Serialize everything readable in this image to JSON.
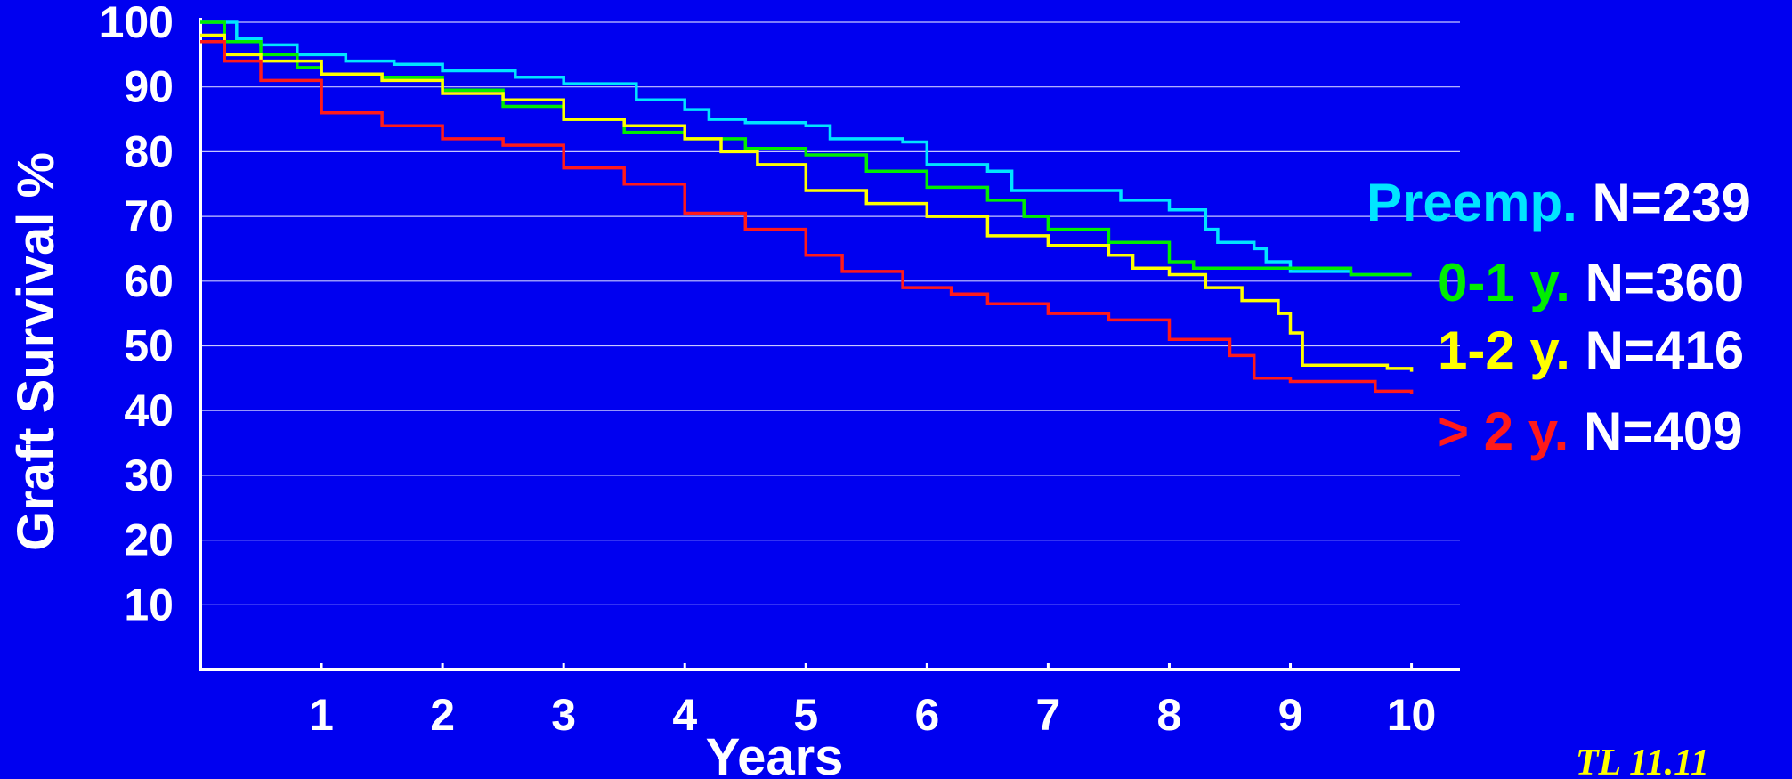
{
  "colors": {
    "background": "#0000f0",
    "axis": "#ffffff",
    "grid": "#c8c8ff"
  },
  "chart_data": {
    "type": "line",
    "xlabel": "Years",
    "ylabel": "Graft Survival %",
    "xlim": [
      0,
      10.4
    ],
    "ylim": [
      0,
      100
    ],
    "x_ticks": [
      1,
      2,
      3,
      4,
      5,
      6,
      7,
      8,
      9,
      10
    ],
    "y_ticks": [
      10,
      20,
      30,
      40,
      50,
      60,
      70,
      80,
      90,
      100
    ],
    "grid": true,
    "step": true,
    "legend_placement": "right",
    "series": [
      {
        "name": "Preemp.",
        "n_label": "N=239",
        "color": "#00e5ff",
        "points": [
          [
            0,
            100
          ],
          [
            0.3,
            97.5
          ],
          [
            0.5,
            96.5
          ],
          [
            0.8,
            95
          ],
          [
            1.2,
            94
          ],
          [
            1.6,
            93.5
          ],
          [
            2.0,
            92.5
          ],
          [
            2.6,
            91.5
          ],
          [
            3.0,
            90.5
          ],
          [
            3.6,
            88
          ],
          [
            4.0,
            86.5
          ],
          [
            4.2,
            85
          ],
          [
            4.5,
            84.5
          ],
          [
            5.0,
            84
          ],
          [
            5.2,
            82
          ],
          [
            5.8,
            81.5
          ],
          [
            6.0,
            78
          ],
          [
            6.5,
            77
          ],
          [
            6.7,
            74
          ],
          [
            7.0,
            74
          ],
          [
            7.6,
            72.5
          ],
          [
            8.0,
            71
          ],
          [
            8.3,
            68
          ],
          [
            8.4,
            66
          ],
          [
            8.7,
            65
          ],
          [
            8.8,
            63
          ],
          [
            9.0,
            61.5
          ],
          [
            9.5,
            61
          ],
          [
            10.0,
            61
          ]
        ]
      },
      {
        "name": "0-1 y.",
        "n_label": "N=360",
        "color": "#00ee00",
        "points": [
          [
            0,
            100
          ],
          [
            0.2,
            97
          ],
          [
            0.5,
            95
          ],
          [
            0.8,
            93
          ],
          [
            1.0,
            92
          ],
          [
            1.5,
            91.5
          ],
          [
            2.0,
            89.5
          ],
          [
            2.5,
            87
          ],
          [
            3.0,
            85
          ],
          [
            3.5,
            83
          ],
          [
            4.0,
            82
          ],
          [
            4.5,
            80.5
          ],
          [
            5.0,
            79.5
          ],
          [
            5.5,
            77
          ],
          [
            6.0,
            74.5
          ],
          [
            6.5,
            72.5
          ],
          [
            6.8,
            70
          ],
          [
            7.0,
            68
          ],
          [
            7.5,
            66
          ],
          [
            8.0,
            63
          ],
          [
            8.2,
            62
          ],
          [
            9.0,
            62
          ],
          [
            9.5,
            61
          ],
          [
            10.0,
            61
          ]
        ]
      },
      {
        "name": "1-2 y.",
        "n_label": "N=416",
        "color": "#ffff00",
        "points": [
          [
            0,
            98
          ],
          [
            0.2,
            95
          ],
          [
            0.5,
            94
          ],
          [
            1.0,
            92
          ],
          [
            1.5,
            91
          ],
          [
            2.0,
            89
          ],
          [
            2.5,
            88
          ],
          [
            3.0,
            85
          ],
          [
            3.5,
            84
          ],
          [
            4.0,
            82
          ],
          [
            4.3,
            80
          ],
          [
            4.6,
            78
          ],
          [
            5.0,
            74
          ],
          [
            5.5,
            72
          ],
          [
            6.0,
            70
          ],
          [
            6.5,
            67
          ],
          [
            7.0,
            65.5
          ],
          [
            7.5,
            64
          ],
          [
            7.7,
            62
          ],
          [
            8.0,
            61
          ],
          [
            8.3,
            59
          ],
          [
            8.6,
            57
          ],
          [
            8.9,
            55
          ],
          [
            9.0,
            52
          ],
          [
            9.1,
            47
          ],
          [
            9.5,
            47
          ],
          [
            9.8,
            46.5
          ],
          [
            10.0,
            46
          ]
        ]
      },
      {
        "name": "> 2 y.",
        "n_label": "N=409",
        "color": "#ff1a1a",
        "points": [
          [
            0,
            97
          ],
          [
            0.2,
            94
          ],
          [
            0.5,
            91
          ],
          [
            1.0,
            86
          ],
          [
            1.5,
            84
          ],
          [
            2.0,
            82
          ],
          [
            2.5,
            81
          ],
          [
            3.0,
            77.5
          ],
          [
            3.5,
            75
          ],
          [
            4.0,
            70.5
          ],
          [
            4.5,
            68
          ],
          [
            5.0,
            64
          ],
          [
            5.3,
            61.5
          ],
          [
            5.8,
            59
          ],
          [
            6.2,
            58
          ],
          [
            6.5,
            56.5
          ],
          [
            7.0,
            55
          ],
          [
            7.5,
            54
          ],
          [
            8.0,
            51
          ],
          [
            8.5,
            48.5
          ],
          [
            8.7,
            45
          ],
          [
            9.0,
            44.5
          ],
          [
            9.5,
            44.5
          ],
          [
            9.7,
            43
          ],
          [
            10.0,
            42.5
          ]
        ]
      }
    ],
    "annotation": "TL 11.11"
  }
}
